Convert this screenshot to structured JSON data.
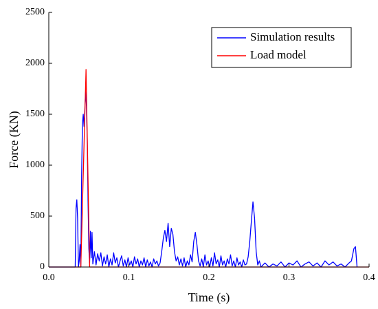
{
  "chart_data": {
    "type": "line",
    "xlabel": "Time (s)",
    "ylabel": "Force (KN)",
    "xlim": [
      0,
      0.4
    ],
    "xticks": [
      {
        "value": 0,
        "label": "0.0"
      },
      0.1,
      0.2,
      0.3,
      0.4
    ],
    "ylim": [
      0,
      2500
    ],
    "yticks": [
      0,
      500,
      1000,
      1500,
      2000,
      2500
    ],
    "legend": "upper right",
    "series": [
      {
        "name": "Simulation results",
        "color": "#0000ff",
        "x": [
          0,
          0.033,
          0.034,
          0.035,
          0.036,
          0.037,
          0.038,
          0.039,
          0.04,
          0.041,
          0.042,
          0.043,
          0.044,
          0.045,
          0.046,
          0.047,
          0.048,
          0.049,
          0.05,
          0.051,
          0.052,
          0.053,
          0.054,
          0.055,
          0.057,
          0.059,
          0.061,
          0.063,
          0.065,
          0.067,
          0.069,
          0.071,
          0.073,
          0.075,
          0.077,
          0.079,
          0.081,
          0.083,
          0.085,
          0.087,
          0.089,
          0.091,
          0.093,
          0.095,
          0.097,
          0.099,
          0.101,
          0.103,
          0.105,
          0.107,
          0.109,
          0.111,
          0.113,
          0.115,
          0.117,
          0.119,
          0.121,
          0.123,
          0.125,
          0.127,
          0.129,
          0.131,
          0.133,
          0.135,
          0.137,
          0.139,
          0.141,
          0.143,
          0.145,
          0.147,
          0.149,
          0.151,
          0.153,
          0.155,
          0.157,
          0.159,
          0.161,
          0.163,
          0.165,
          0.167,
          0.169,
          0.171,
          0.173,
          0.175,
          0.177,
          0.179,
          0.181,
          0.183,
          0.185,
          0.187,
          0.189,
          0.191,
          0.193,
          0.195,
          0.197,
          0.199,
          0.201,
          0.203,
          0.205,
          0.207,
          0.209,
          0.211,
          0.213,
          0.215,
          0.217,
          0.219,
          0.221,
          0.223,
          0.225,
          0.227,
          0.229,
          0.231,
          0.233,
          0.235,
          0.237,
          0.239,
          0.241,
          0.243,
          0.245,
          0.247,
          0.249,
          0.251,
          0.253,
          0.255,
          0.257,
          0.259,
          0.261,
          0.263,
          0.265,
          0.27,
          0.275,
          0.28,
          0.285,
          0.29,
          0.295,
          0.3,
          0.305,
          0.31,
          0.315,
          0.32,
          0.325,
          0.33,
          0.335,
          0.34,
          0.345,
          0.35,
          0.355,
          0.36,
          0.365,
          0.37,
          0.375,
          0.378,
          0.381,
          0.383,
          0.385
        ],
        "values": [
          0,
          0,
          580,
          660,
          480,
          0,
          60,
          220,
          0,
          900,
          1400,
          1500,
          1380,
          1550,
          1720,
          1580,
          1250,
          650,
          180,
          40,
          350,
          90,
          340,
          30,
          150,
          20,
          130,
          60,
          140,
          10,
          100,
          30,
          120,
          0,
          80,
          20,
          140,
          40,
          90,
          0,
          60,
          110,
          10,
          70,
          0,
          90,
          20,
          60,
          0,
          100,
          30,
          80,
          0,
          60,
          20,
          90,
          0,
          70,
          10,
          50,
          0,
          80,
          30,
          60,
          10,
          40,
          150,
          280,
          360,
          250,
          430,
          200,
          380,
          320,
          150,
          60,
          100,
          20,
          80,
          10,
          90,
          0,
          60,
          20,
          120,
          50,
          250,
          340,
          220,
          60,
          10,
          80,
          0,
          120,
          20,
          60,
          0,
          90,
          10,
          140,
          30,
          70,
          0,
          110,
          20,
          60,
          0,
          80,
          30,
          120,
          10,
          60,
          0,
          90,
          20,
          50,
          0,
          70,
          20,
          30,
          100,
          250,
          450,
          640,
          480,
          150,
          20,
          60,
          0,
          40,
          0,
          30,
          10,
          50,
          0,
          40,
          20,
          60,
          0,
          30,
          50,
          10,
          40,
          0,
          60,
          20,
          50,
          10,
          30,
          0,
          40,
          60,
          180,
          200,
          0
        ]
      },
      {
        "name": "Load model",
        "color": "#ff0000",
        "x": [
          0,
          0.04,
          0.0465,
          0.051,
          0.4
        ],
        "values": [
          0,
          0,
          1940,
          0,
          0
        ]
      }
    ]
  }
}
